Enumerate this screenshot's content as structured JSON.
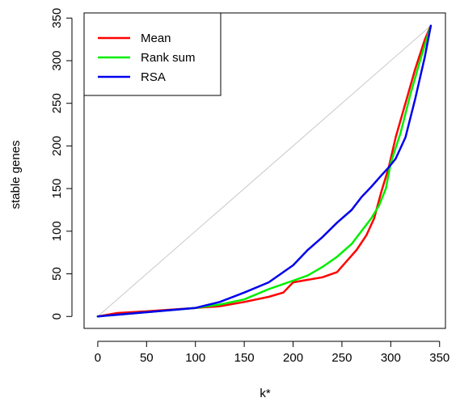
{
  "chart_data": {
    "type": "line",
    "title": "",
    "xlabel": "k*",
    "ylabel": "stable genes",
    "xlim": [
      -14,
      356
    ],
    "ylim": [
      -14,
      356
    ],
    "xticks": [
      0,
      50,
      100,
      150,
      200,
      250,
      300,
      350
    ],
    "yticks": [
      0,
      50,
      100,
      150,
      200,
      250,
      300,
      350
    ],
    "grid": false,
    "legend_position": "top-left",
    "reference_line": {
      "from": [
        0,
        0
      ],
      "to": [
        341,
        341
      ],
      "color": "#c8c8c8"
    },
    "series": [
      {
        "name": "Mean",
        "color": "#ff0000",
        "x": [
          0,
          20,
          50,
          100,
          125,
          150,
          175,
          190,
          200,
          215,
          230,
          245,
          255,
          265,
          275,
          283,
          290,
          298,
          305,
          315,
          325,
          335,
          341
        ],
        "y": [
          0,
          4,
          6,
          10,
          12,
          17,
          23,
          28,
          40,
          43,
          46,
          52,
          65,
          78,
          95,
          115,
          145,
          175,
          210,
          250,
          290,
          325,
          341
        ]
      },
      {
        "name": "Rank sum",
        "color": "#00ee00",
        "x": [
          0,
          20,
          50,
          100,
          125,
          150,
          175,
          190,
          200,
          215,
          230,
          245,
          260,
          270,
          280,
          288,
          295,
          300,
          310,
          320,
          330,
          341
        ],
        "y": [
          0,
          2,
          5,
          10,
          14,
          20,
          32,
          38,
          42,
          48,
          58,
          70,
          85,
          100,
          115,
          130,
          150,
          180,
          215,
          260,
          300,
          341
        ]
      },
      {
        "name": "RSA",
        "color": "#0000ee",
        "x": [
          0,
          20,
          50,
          100,
          125,
          150,
          175,
          190,
          200,
          215,
          230,
          245,
          260,
          270,
          280,
          290,
          298,
          305,
          315,
          325,
          335,
          341
        ],
        "y": [
          0,
          2,
          5,
          10,
          17,
          28,
          40,
          52,
          60,
          78,
          93,
          110,
          125,
          140,
          152,
          165,
          175,
          185,
          210,
          255,
          305,
          341
        ]
      }
    ]
  }
}
